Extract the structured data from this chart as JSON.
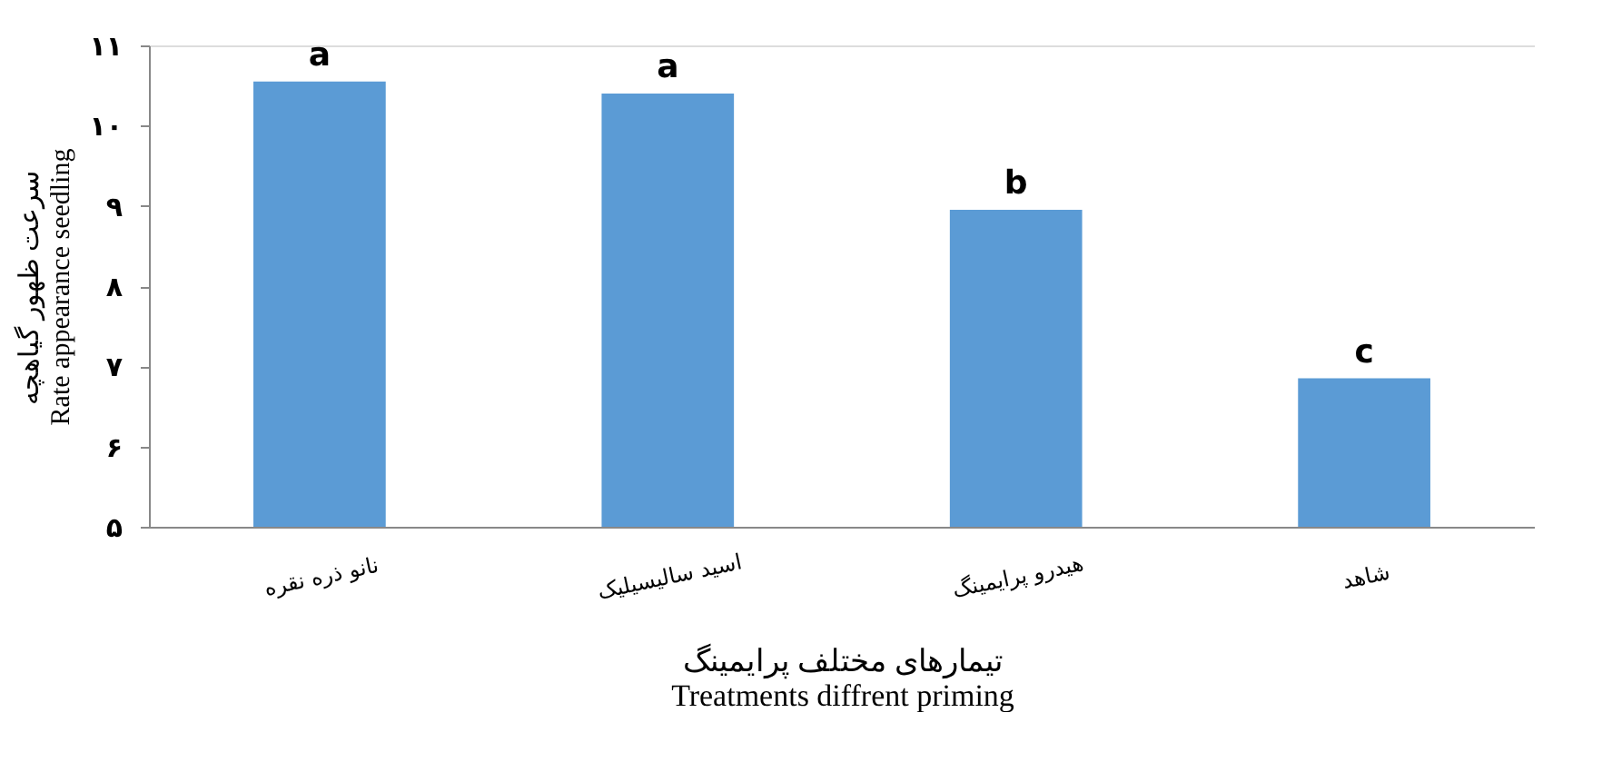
{
  "chart_data": {
    "type": "bar",
    "categories": [
      "نانو ذره نقره",
      "اسید سالیسیلیک",
      "هیدرو پرایمینگ",
      "شاهد"
    ],
    "values": [
      10.55,
      10.4,
      8.95,
      6.85
    ],
    "color": "#5b9bd5",
    "ylim": [
      5,
      11
    ],
    "yticks": [
      {
        "value": 5,
        "label": "۵"
      },
      {
        "value": 6,
        "label": "۶"
      },
      {
        "value": 7,
        "label": "۷"
      },
      {
        "value": 8,
        "label": "۸"
      },
      {
        "value": 9,
        "label": "۹"
      },
      {
        "value": 10,
        "label": "۱۰"
      },
      {
        "value": 11,
        "label": "۱۱"
      }
    ],
    "ylabel": "سرعت ظهور گیاهچه\nRate appearance seedling",
    "xlabel": "تیمارهای مختلف پرایمینگ\nTreatments diffrent priming",
    "annotations": [
      {
        "text": "a",
        "x": "نانو ذره نقره",
        "y": 10.55
      },
      {
        "text": "a",
        "x": "اسید سالیسیلیک",
        "y": 10.4
      },
      {
        "text": "b",
        "x": "هیدرو پرایمینگ",
        "y": 8.95
      },
      {
        "text": "c",
        "x": "شاهد",
        "y": 6.85
      }
    ],
    "grid": false
  }
}
